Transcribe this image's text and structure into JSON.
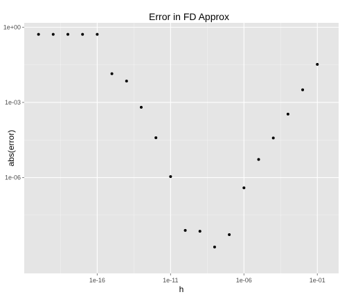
{
  "chart_data": {
    "type": "scatter",
    "title": "Error in FD Approx",
    "xlabel": "h",
    "ylabel": "abs(error)",
    "x_scale": "log10",
    "y_scale": "log10",
    "xlim": [
      1e-20,
      0.3
    ],
    "ylim": [
      1.5e-10,
      1.5
    ],
    "x_ticks": [
      {
        "value": 1e-16,
        "label": "1e-16"
      },
      {
        "value": 1e-11,
        "label": "1e-11"
      },
      {
        "value": 1e-06,
        "label": "1e-06"
      },
      {
        "value": 0.1,
        "label": "1e-01"
      }
    ],
    "y_ticks": [
      {
        "value": 1.0,
        "label": "1e+00"
      },
      {
        "value": 0.001,
        "label": "1e-03"
      },
      {
        "value": 1e-06,
        "label": "1e-06"
      }
    ],
    "grid": true,
    "background": "#e5e5e5",
    "grid_color": "#ffffff",
    "point_color": "#000000",
    "points": [
      {
        "x": 1e-20,
        "y": 0.52
      },
      {
        "x": 1e-19,
        "y": 0.52
      },
      {
        "x": 1e-18,
        "y": 0.52
      },
      {
        "x": 1e-17,
        "y": 0.52
      },
      {
        "x": 1e-16,
        "y": 0.52
      },
      {
        "x": 1e-15,
        "y": 0.014
      },
      {
        "x": 1e-14,
        "y": 0.0071
      },
      {
        "x": 1e-13,
        "y": 0.00064
      },
      {
        "x": 1e-12,
        "y": 3.9e-05
      },
      {
        "x": 1e-11,
        "y": 1.1e-06
      },
      {
        "x": 1e-10,
        "y": 7.8e-09
      },
      {
        "x": 1e-09,
        "y": 7.2e-09
      },
      {
        "x": 1e-08,
        "y": 1.7e-09
      },
      {
        "x": 1e-07,
        "y": 5.3e-09
      },
      {
        "x": 1e-06,
        "y": 3.9e-07
      },
      {
        "x": 1e-05,
        "y": 5.3e-06
      },
      {
        "x": 0.0001,
        "y": 3.8e-05
      },
      {
        "x": 0.001,
        "y": 0.00034
      },
      {
        "x": 0.01,
        "y": 0.0032
      },
      {
        "x": 0.1,
        "y": 0.033
      }
    ]
  }
}
